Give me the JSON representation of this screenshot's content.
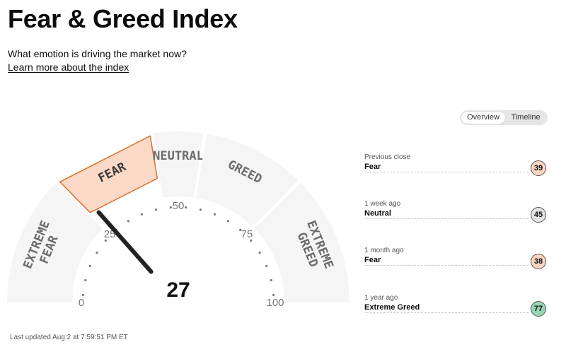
{
  "header": {
    "title": "Fear & Greed Index",
    "subtitle": "What emotion is driving the market now?",
    "learn_link": "Learn more about the index"
  },
  "view_toggle": {
    "options": [
      "Overview",
      "Timeline"
    ],
    "selected": "Overview"
  },
  "gauge": {
    "value": 27,
    "value_label": "27",
    "scale_min": 0,
    "scale_max": 100,
    "tick_labels": [
      "0",
      "25",
      "50",
      "75",
      "100"
    ],
    "active_zone": "fear",
    "zones": [
      {
        "id": "extreme-fear",
        "lines": [
          "EXTREME",
          "FEAR"
        ],
        "from": 0,
        "to": 25
      },
      {
        "id": "fear",
        "lines": [
          "FEAR"
        ],
        "from": 25,
        "to": 45
      },
      {
        "id": "neutral",
        "lines": [
          "NEUTRAL"
        ],
        "from": 45,
        "to": 55
      },
      {
        "id": "greed",
        "lines": [
          "GREED"
        ],
        "from": 55,
        "to": 75
      },
      {
        "id": "extreme-greed",
        "lines": [
          "EXTREME",
          "GREED"
        ],
        "from": 75,
        "to": 100
      }
    ]
  },
  "history": [
    {
      "period": "Previous close",
      "label": "Fear",
      "value": "39",
      "color": "#fcd5c2"
    },
    {
      "period": "1 week ago",
      "label": "Neutral",
      "value": "45",
      "color": "#e2e2e2"
    },
    {
      "period": "1 month ago",
      "label": "Fear",
      "value": "38",
      "color": "#fcd5c2"
    },
    {
      "period": "1 year ago",
      "label": "Extreme Greed",
      "value": "77",
      "color": "#95d6b5"
    }
  ],
  "footer": {
    "last_updated": "Last updated Aug 2 at 7:59:51 PM ET"
  },
  "colors": {
    "zone_fill": "#f5f5f5",
    "active_fill": "#fcd9c7",
    "active_stroke": "#d96f32",
    "zone_text": "#6b6b6b",
    "needle": "#222222"
  }
}
